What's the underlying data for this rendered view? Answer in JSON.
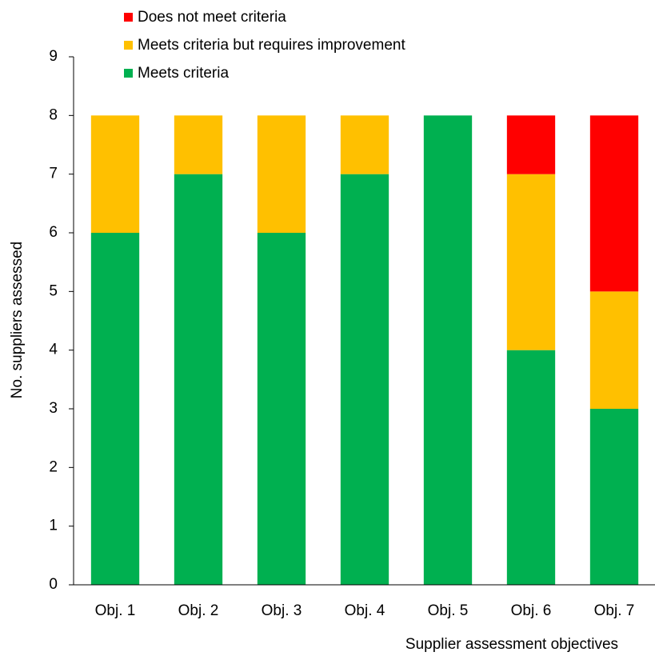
{
  "chart_data": {
    "type": "stacked_bar",
    "x_label": "Supplier assessment objectives",
    "y_label": "No. suppliers assessed",
    "categories": [
      "Obj. 1",
      "Obj. 2",
      "Obj. 3",
      "Obj. 4",
      "Obj. 5",
      "Obj. 6",
      "Obj. 7"
    ],
    "series": [
      {
        "name": "Meets criteria",
        "color": "#00b050",
        "values": [
          6,
          7,
          6,
          7,
          8,
          4,
          3
        ]
      },
      {
        "name": "Meets criteria but requires improvement",
        "color": "#ffc000",
        "values": [
          2,
          1,
          2,
          1,
          0,
          3,
          2
        ]
      },
      {
        "name": "Does not meet criteria",
        "color": "#ff0000",
        "values": [
          0,
          0,
          0,
          0,
          0,
          1,
          3
        ]
      }
    ],
    "ylim": [
      0,
      9
    ],
    "yticks": [
      0,
      1,
      2,
      3,
      4,
      5,
      6,
      7,
      8,
      9
    ]
  }
}
